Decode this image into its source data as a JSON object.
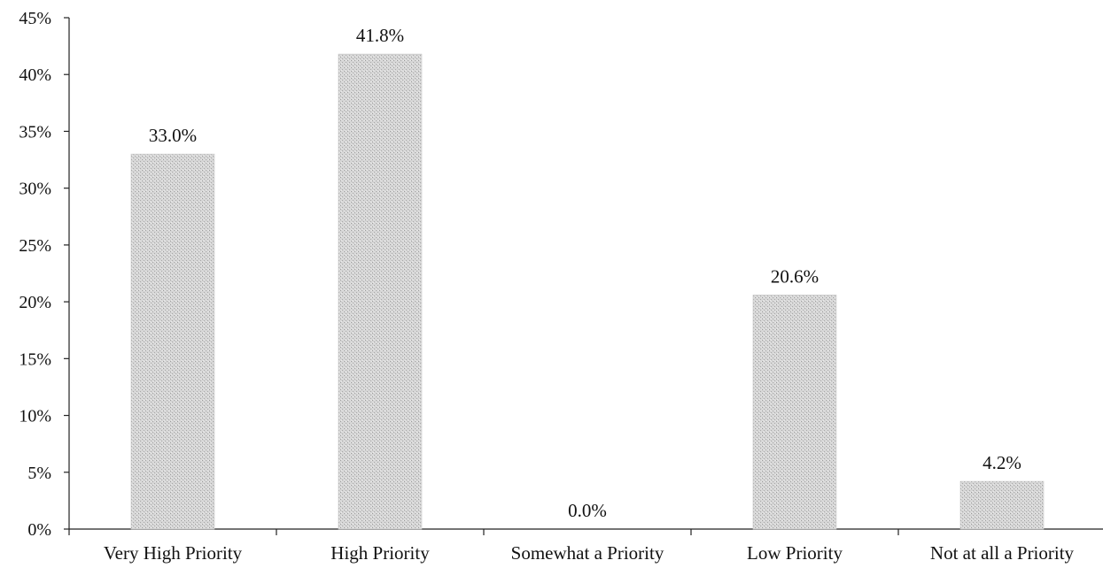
{
  "chart_data": {
    "type": "bar",
    "title": "",
    "xlabel": "",
    "ylabel": "",
    "categories": [
      "Very High Priority",
      "High Priority",
      "Somewhat a Priority",
      "Low Priority",
      "Not at all a Priority"
    ],
    "values": [
      33.0,
      41.8,
      0.0,
      20.6,
      4.2
    ],
    "value_labels": [
      "33.0%",
      "41.8%",
      "0.0%",
      "20.6%",
      "4.2%"
    ],
    "ylim": [
      0,
      45
    ],
    "yticks": [
      0,
      5,
      10,
      15,
      20,
      25,
      30,
      35,
      40,
      45
    ],
    "ytick_labels": [
      "0%",
      "5%",
      "10%",
      "15%",
      "20%",
      "25%",
      "30%",
      "35%",
      "40%",
      "45%"
    ],
    "grid": false,
    "legend": "none",
    "bar_color": "#cfcfcf"
  }
}
